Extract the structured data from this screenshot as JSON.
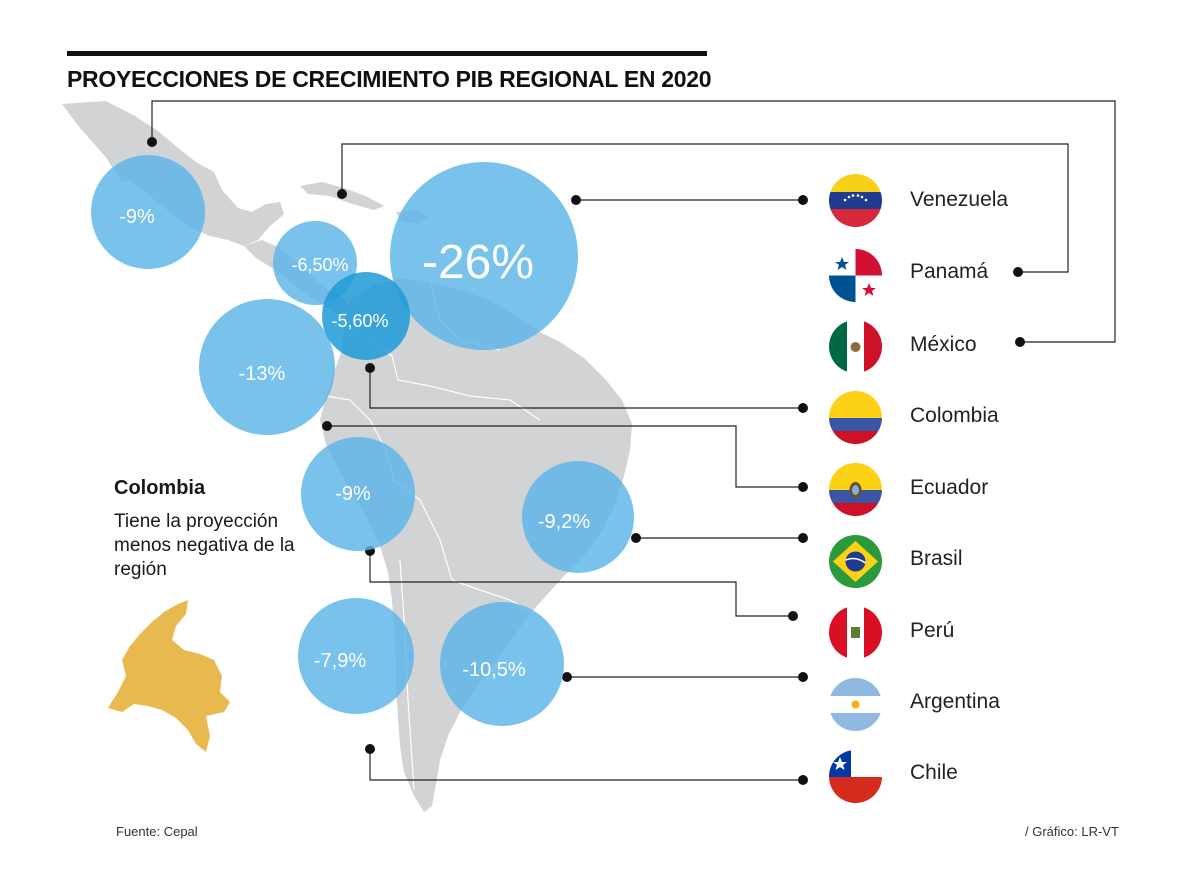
{
  "title": "PROYECCIONES DE CRECIMIENTO PIB REGIONAL EN 2020",
  "note": {
    "title": "Colombia",
    "body": "Tiene la proyección menos negativa de la región"
  },
  "source": "Fuente: Cepal",
  "credit": "/ Gráfico: LR-VT",
  "colors": {
    "bubble": "#5ab4e8",
    "land": "#d2d3d5",
    "colombia_inset": "#e8b94f",
    "leader": "#111111"
  },
  "countries": [
    {
      "name": "Venezuela",
      "value": "-26%",
      "flag": "venezuela-flag"
    },
    {
      "name": "Panamá",
      "value": "-6,50%",
      "flag": "panama-flag"
    },
    {
      "name": "México",
      "value": "-9%",
      "flag": "mexico-flag"
    },
    {
      "name": "Colombia",
      "value": "-5,60%",
      "flag": "colombia-flag"
    },
    {
      "name": "Ecuador",
      "value": "-13%",
      "flag": "ecuador-flag"
    },
    {
      "name": "Brasil",
      "value": "-9,2%",
      "flag": "brazil-flag"
    },
    {
      "name": "Perú",
      "value": "-9%",
      "flag": "peru-flag"
    },
    {
      "name": "Argentina",
      "value": "-10,5%",
      "flag": "argentina-flag"
    },
    {
      "name": "Chile",
      "value": "-7,9%",
      "flag": "chile-flag"
    }
  ]
}
